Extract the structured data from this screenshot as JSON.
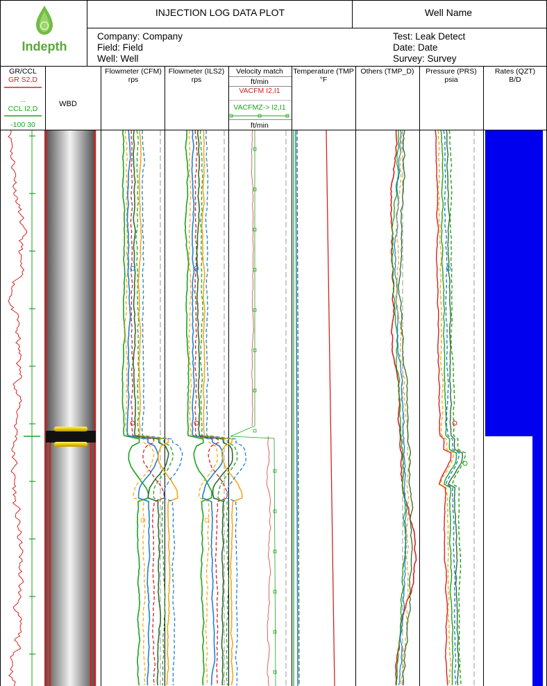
{
  "header": {
    "logo_text": "Indepth",
    "title": "INJECTION LOG DATA PLOT",
    "well_name_label": "Well Name",
    "company": "Company: Company",
    "field": "Field: Field",
    "well": "Well: Well",
    "test": "Test: Leak Detect",
    "date": "Date: Date",
    "survey": "Survey: Survey"
  },
  "colors": {
    "red": "#d42020",
    "green": "#1aa31a",
    "blue": "#1e7fd0",
    "orange": "#f2a81d",
    "dark_green": "#2e6b2e",
    "rate_blue": "#0000ee",
    "packer_yellow": "#f5d800"
  },
  "tracks": {
    "gr_ccl": {
      "title": "GR/CCL",
      "curve1": "GR  S2,D",
      "dots": "...",
      "curve2": "CCL  I2,D",
      "scale": "-100 30"
    },
    "wbd": {
      "title": "WBD"
    },
    "cfm": {
      "title": "Flowmeter (CFM)",
      "unit": "rps"
    },
    "ils2": {
      "title": "Flowmeter (ILS2)",
      "unit": "rps"
    },
    "velocity": {
      "title": "Velocity match",
      "unit_top": "ft/min",
      "curve1": "VACFM  I2,I1",
      "curve2": "VACFMZ->  I2,I1",
      "unit_bottom": "ft/min"
    },
    "temperature": {
      "title": "Temperature (TMP",
      "unit": "°F"
    },
    "others": {
      "title": "Others (TMP_D)"
    },
    "pressure": {
      "title": "Pressure (PRS)",
      "unit": "psia"
    },
    "rates": {
      "title": "Rates (QZT)",
      "unit": "B/D"
    }
  },
  "chart_data": {
    "type": "line",
    "title": "INJECTION LOG DATA PLOT",
    "packer_depth_fraction": 0.55,
    "series": [
      {
        "name": "GR  S2,D",
        "track": "GR/CCL"
      },
      {
        "name": "CCL  I2,D",
        "track": "GR/CCL"
      },
      {
        "name": "VACFM  I2,I1",
        "track": "Velocity match"
      },
      {
        "name": "VACFMZ->  I2,I1",
        "track": "Velocity match"
      }
    ],
    "rates": {
      "track": "Rates (QZT)",
      "unit": "B/D",
      "upper_fill_fraction": 1.0,
      "lower_fill_fraction": 0.18
    }
  }
}
